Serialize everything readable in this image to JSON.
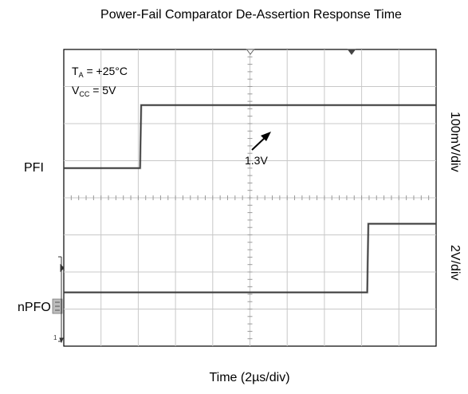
{
  "chart_data": {
    "type": "line",
    "title": "Power-Fail Comparator De-Assertion Response Time",
    "xlabel": "Time (2µs/div)",
    "annotations": {
      "conditions": [
        {
          "text": "T",
          "sub": "A",
          "rest": " = +25°C"
        },
        {
          "text": "V",
          "sub": "CC",
          "rest": " = 5V"
        }
      ],
      "threshold_label": "1.3V"
    },
    "grid": {
      "x_divisions": 10,
      "y_divisions": 8,
      "visible": true
    },
    "series": [
      {
        "name": "PFI",
        "scale": "100mV/div",
        "points": [
          [
            0,
            4.8
          ],
          [
            2.05,
            4.8
          ],
          [
            2.08,
            6.5
          ],
          [
            10,
            6.5
          ]
        ]
      },
      {
        "name": "nPFO",
        "scale": "2V/div",
        "points": [
          [
            0,
            1.45
          ],
          [
            8.15,
            1.45
          ],
          [
            8.18,
            3.3
          ],
          [
            10,
            3.3
          ]
        ]
      }
    ],
    "channel_labels": {
      "pfi": "PFI",
      "npfo": "nPFO"
    },
    "scale_labels": {
      "pfi": "100mV/div",
      "npfo": "2V/div"
    }
  },
  "colors": {
    "trace": "#3a3a3a",
    "grid": "#c8c8c8",
    "frame": "#000000"
  }
}
